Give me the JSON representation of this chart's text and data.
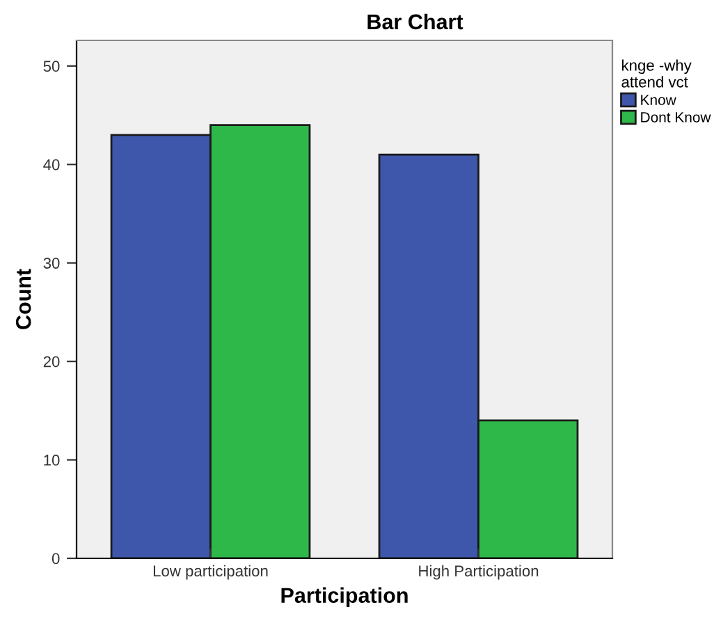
{
  "chart_data": {
    "type": "bar",
    "title": "Bar Chart",
    "xlabel": "Participation",
    "ylabel": "Count",
    "legend_title": "knge -why\nattend vct",
    "categories": [
      "Low participation",
      "High Participation"
    ],
    "series": [
      {
        "name": "Know",
        "color": "#3f57aa",
        "values": [
          43,
          41
        ]
      },
      {
        "name": "Dont Know",
        "color": "#2fb84a",
        "values": [
          44,
          14
        ]
      }
    ],
    "ylim": [
      0,
      52.6
    ],
    "yticks": [
      0,
      10,
      20,
      30,
      40,
      50
    ],
    "grid": false,
    "legend": "top right"
  }
}
